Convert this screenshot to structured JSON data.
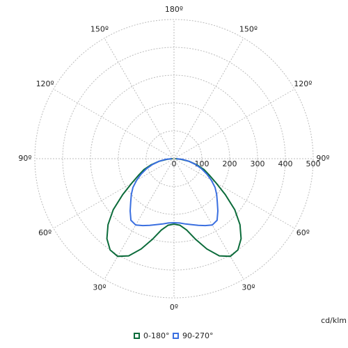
{
  "chart_data": {
    "type": "polar",
    "theta": [
      0,
      5,
      10,
      15,
      20,
      25,
      30,
      35,
      40,
      45,
      50,
      55,
      60,
      65,
      70,
      75,
      80,
      85,
      90
    ],
    "series": [
      {
        "name": "0-180°",
        "color": "#0b6b3a",
        "values": [
          235,
          240,
          260,
          300,
          345,
          385,
          405,
          400,
          375,
          335,
          285,
          225,
          175,
          140,
          115,
          85,
          55,
          25,
          5
        ]
      },
      {
        "name": "90-270°",
        "color": "#3a6fe0",
        "values": [
          230,
          232,
          238,
          245,
          255,
          265,
          275,
          270,
          245,
          220,
          200,
          180,
          155,
          130,
          105,
          80,
          55,
          30,
          8
        ]
      }
    ],
    "rlim": [
      0,
      500
    ],
    "rticks": [
      0,
      100,
      200,
      300,
      400,
      500
    ],
    "thetaticks": [
      {
        "value": 0,
        "label": "0º"
      },
      {
        "value": 30,
        "label": "30º"
      },
      {
        "value": 60,
        "label": "60º"
      },
      {
        "value": 90,
        "label": "90º"
      },
      {
        "value": 120,
        "label": "120º"
      },
      {
        "value": 150,
        "label": "150º"
      },
      {
        "value": 180,
        "label": "180º"
      }
    ],
    "unit": "cd/klm",
    "grid": true
  }
}
